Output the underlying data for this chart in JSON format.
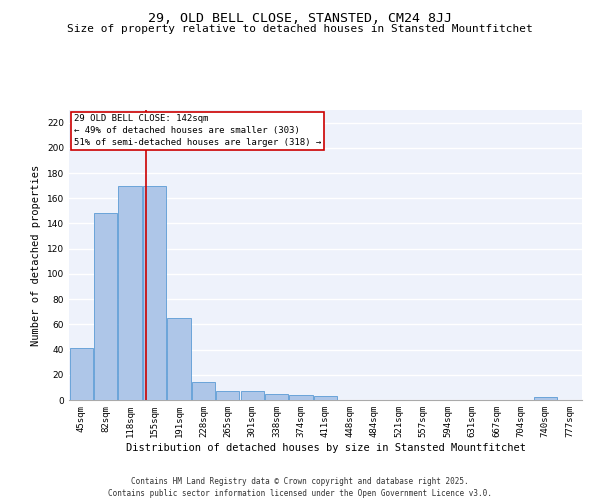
{
  "title1": "29, OLD BELL CLOSE, STANSTED, CM24 8JJ",
  "title2": "Size of property relative to detached houses in Stansted Mountfitchet",
  "xlabel": "Distribution of detached houses by size in Stansted Mountfitchet",
  "ylabel": "Number of detached properties",
  "categories": [
    "45sqm",
    "82sqm",
    "118sqm",
    "155sqm",
    "191sqm",
    "228sqm",
    "265sqm",
    "301sqm",
    "338sqm",
    "374sqm",
    "411sqm",
    "448sqm",
    "484sqm",
    "521sqm",
    "557sqm",
    "594sqm",
    "631sqm",
    "667sqm",
    "704sqm",
    "740sqm",
    "777sqm"
  ],
  "values": [
    41,
    148,
    170,
    170,
    65,
    14,
    7,
    7,
    5,
    4,
    3,
    0,
    0,
    0,
    0,
    0,
    0,
    0,
    0,
    2,
    0
  ],
  "bar_color": "#aec6e8",
  "bar_edge_color": "#5b9bd5",
  "bar_linewidth": 0.6,
  "vline_color": "#cc0000",
  "annotation_text": "29 OLD BELL CLOSE: 142sqm\n← 49% of detached houses are smaller (303)\n51% of semi-detached houses are larger (318) →",
  "annotation_box_color": "#cc0000",
  "ylim": [
    0,
    230
  ],
  "yticks": [
    0,
    20,
    40,
    60,
    80,
    100,
    120,
    140,
    160,
    180,
    200,
    220
  ],
  "background_color": "#eef2fb",
  "grid_color": "#ffffff",
  "footer": "Contains HM Land Registry data © Crown copyright and database right 2025.\nContains public sector information licensed under the Open Government Licence v3.0.",
  "title1_fontsize": 9.5,
  "title2_fontsize": 8.0,
  "xlabel_fontsize": 7.5,
  "ylabel_fontsize": 7.5,
  "tick_fontsize": 6.5,
  "annotation_fontsize": 6.5,
  "footer_fontsize": 5.5
}
